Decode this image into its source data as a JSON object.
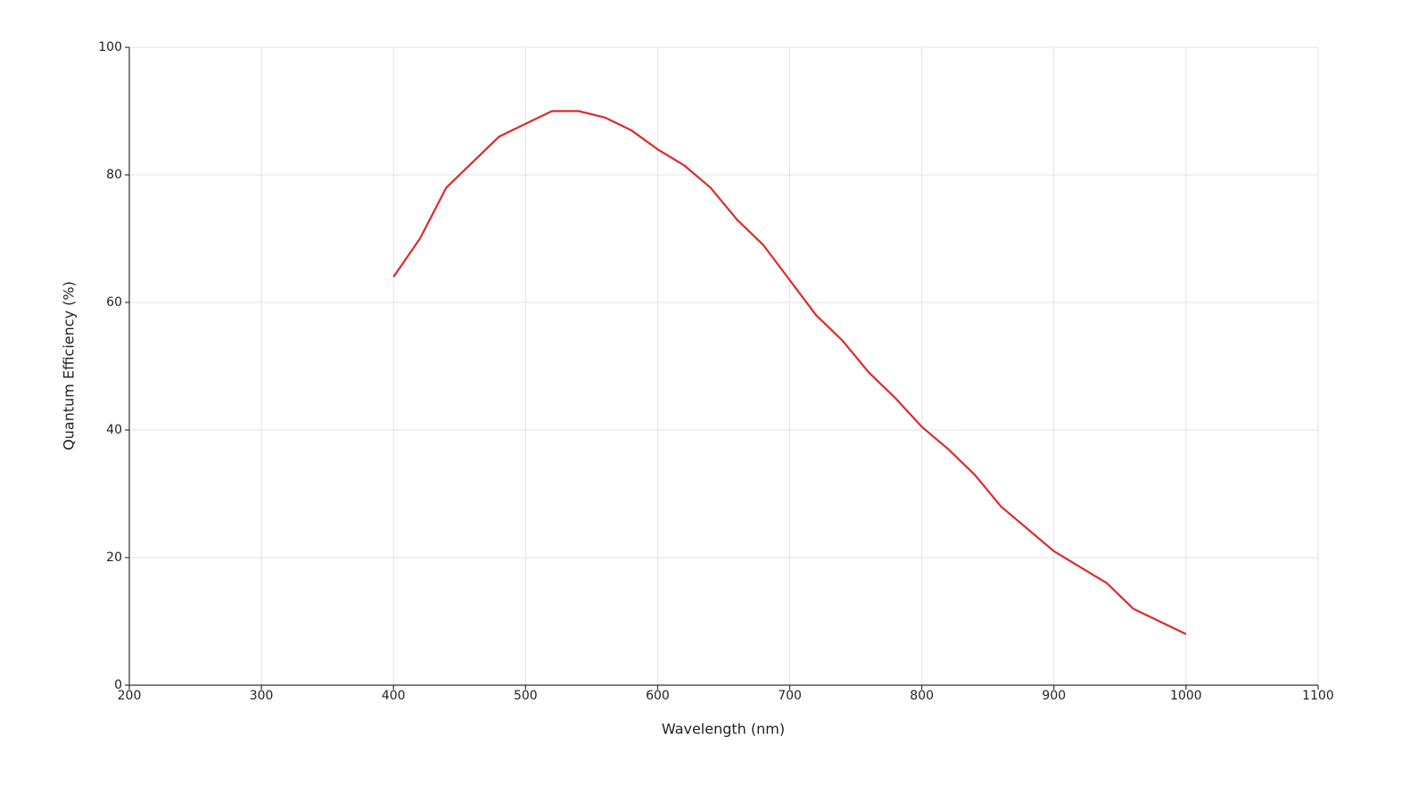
{
  "chart_data": {
    "type": "line",
    "x_label": "Wavelength (nm)",
    "y_label": "Quantum Efficiency (%)",
    "x": [
      400,
      420,
      440,
      460,
      480,
      500,
      520,
      540,
      560,
      580,
      600,
      620,
      640,
      660,
      680,
      700,
      720,
      740,
      760,
      780,
      800,
      820,
      840,
      860,
      880,
      900,
      920,
      940,
      960,
      980,
      1000
    ],
    "series": [
      {
        "color": "#dd2a2a",
        "values": [
          64,
          70,
          78,
          82,
          86,
          88,
          90,
          90,
          89,
          87,
          84,
          81.5,
          78,
          73,
          69,
          63.5,
          58,
          54,
          49,
          45,
          40.5,
          37,
          33,
          28,
          24.5,
          21,
          18.5,
          16,
          12,
          10,
          8
        ]
      }
    ],
    "xlim": [
      200,
      1100
    ],
    "xticks": [
      200,
      300,
      400,
      500,
      600,
      700,
      800,
      900,
      1000,
      1100
    ],
    "ylim": [
      0,
      100
    ],
    "yticks": [
      0,
      20,
      40,
      60,
      80,
      100
    ],
    "grid": true
  }
}
